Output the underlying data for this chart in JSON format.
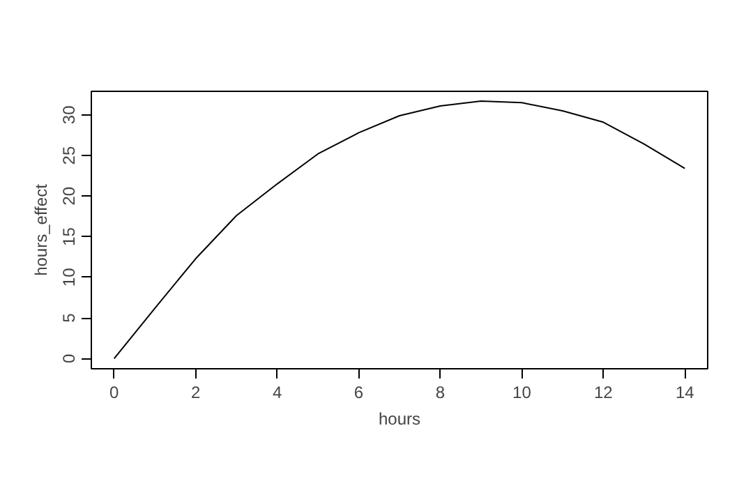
{
  "chart_data": {
    "type": "line",
    "xlabel": "hours",
    "ylabel": "hours_effect",
    "x": [
      0,
      1,
      2,
      3,
      4,
      5,
      6,
      7,
      8,
      9,
      10,
      11,
      12,
      13,
      14
    ],
    "series": [
      {
        "color": "#000000",
        "values": [
          0,
          6.2,
          12.3,
          17.6,
          21.5,
          25.2,
          27.8,
          29.9,
          31.1,
          31.7,
          31.5,
          30.5,
          29.1,
          26.4,
          23.4
        ]
      }
    ],
    "xlim": [
      -0.56,
      14.56
    ],
    "ylim": [
      -1.26,
      32.9
    ],
    "xticks": [
      0,
      2,
      4,
      6,
      8,
      10,
      12,
      14
    ],
    "yticks": [
      0,
      5,
      10,
      15,
      20,
      25,
      30
    ],
    "marker": "none",
    "line_style": "solid"
  }
}
